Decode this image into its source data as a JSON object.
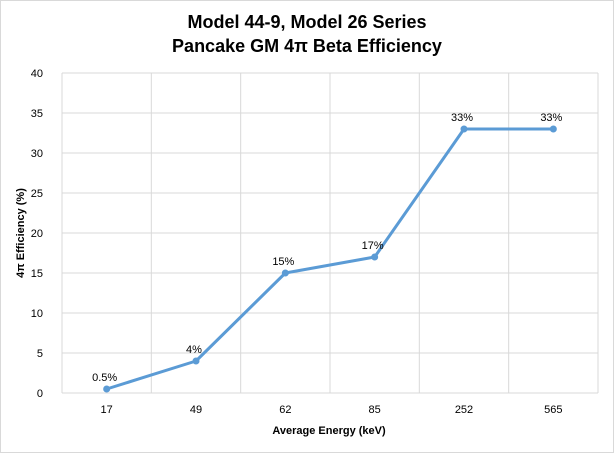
{
  "chart_data": {
    "type": "line",
    "title_line1": "Model 44-9, Model 26 Series",
    "title_line2": "Pancake GM 4π Beta Efficiency",
    "xlabel": "Average Energy (keV)",
    "ylabel": "4π Efficiency  (%)",
    "categories": [
      "17",
      "49",
      "62",
      "85",
      "252",
      "565"
    ],
    "values": [
      0.5,
      4,
      15,
      17,
      33,
      33
    ],
    "data_labels": [
      "0.5%",
      "4%",
      "15%",
      "17%",
      "33%",
      "33%"
    ],
    "ylim": [
      0,
      40
    ],
    "yticks": [
      "0",
      "5",
      "10",
      "15",
      "20",
      "25",
      "30",
      "35",
      "40"
    ],
    "grid": true,
    "legend": "none",
    "line_color": "#5b9bd5",
    "grid_color": "#d9d9d9"
  }
}
